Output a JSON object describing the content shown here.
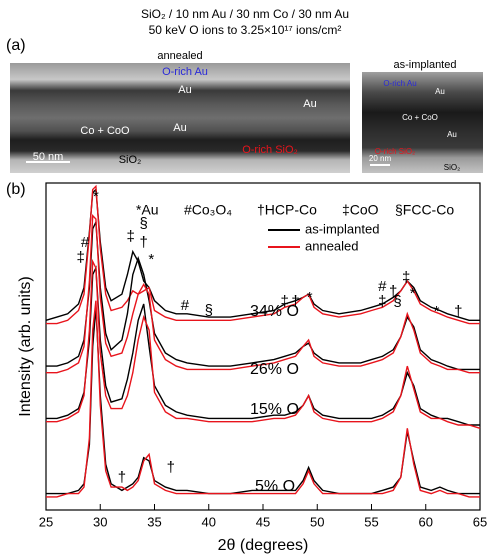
{
  "figure": {
    "title_line1": "SiO₂ / 10 nm Au / 30 nm Co / 30 nm Au",
    "title_line2": "50 keV O ions to 3.25×10¹⁷ ions/cm²",
    "panel_a": {
      "label": "(a)",
      "left": {
        "caption": "annealed",
        "labels": [
          "O-rich Au",
          "Au",
          "Au",
          "Co + CoO",
          "Au",
          "O-rich SiO₂",
          "50 nm",
          "SiO₂"
        ]
      },
      "right": {
        "caption": "as-implanted",
        "labels": [
          "O-rich Au",
          "Au",
          "Co + CoO",
          "Au",
          "O-rich SiO₂",
          "20 nm",
          "SiO₂"
        ]
      }
    }
  },
  "chart_data": {
    "type": "line",
    "panel_label": "(b)",
    "x_label": "2θ (degrees)",
    "y_label": "Intensity (arb. units)",
    "xlim": [
      25,
      65
    ],
    "xticks": [
      25,
      30,
      35,
      40,
      45,
      50,
      55,
      60,
      65
    ],
    "ylim": [
      0,
      100
    ],
    "key": [
      "*Au",
      "#Co₃O₄",
      "†HCP-Co",
      "‡CoO",
      "§FCC-Co"
    ],
    "legend": [
      {
        "name": "as-implanted",
        "color": "#000000"
      },
      {
        "name": "annealed",
        "color": "#e8141c"
      }
    ],
    "x": [
      25,
      26,
      27,
      28,
      28.5,
      29,
      29.3,
      29.6,
      30,
      30.5,
      31,
      32,
      32.5,
      33,
      33.5,
      34,
      34.5,
      35,
      36,
      37,
      38,
      40,
      42,
      44,
      46,
      47,
      48,
      48.7,
      49.2,
      49.7,
      50.5,
      52,
      54,
      55,
      56,
      57,
      57.7,
      58.3,
      58.9,
      59.5,
      60.5,
      61.3,
      62,
      63,
      64,
      65
    ],
    "curves": [
      {
        "label": "34% O",
        "values": [
          [
            58,
            59,
            60,
            63,
            68,
            85,
            97,
            98,
            82,
            68,
            64,
            66,
            72,
            79,
            76,
            70,
            68,
            64,
            61,
            60,
            60,
            59,
            59,
            60,
            61,
            63,
            64,
            65,
            66,
            63,
            61,
            60,
            61,
            62,
            63,
            65,
            67,
            70,
            68,
            64,
            62,
            61,
            60,
            59,
            58,
            58
          ],
          [
            57,
            57,
            58,
            61,
            66,
            84,
            98,
            99,
            80,
            66,
            61,
            62,
            64,
            67,
            66,
            67,
            68,
            61,
            59,
            58,
            58,
            58,
            58,
            59,
            60,
            62,
            63,
            65,
            66,
            62,
            60,
            59,
            60,
            61,
            62,
            64,
            67,
            70,
            67,
            63,
            61,
            60,
            59,
            58,
            57,
            57
          ]
        ]
      },
      {
        "label": "26% O",
        "values": [
          [
            44,
            44,
            45,
            47,
            52,
            68,
            86,
            88,
            68,
            54,
            49,
            52,
            60,
            72,
            77,
            72,
            64,
            54,
            48,
            46,
            45,
            44,
            44,
            45,
            46,
            47,
            48,
            50,
            51,
            48,
            46,
            45,
            45,
            46,
            47,
            49,
            53,
            59,
            56,
            49,
            46,
            45,
            44,
            43,
            43,
            43
          ],
          [
            42,
            42,
            43,
            45,
            50,
            70,
            90,
            89,
            65,
            51,
            47,
            48,
            53,
            60,
            66,
            69,
            66,
            52,
            46,
            44,
            43,
            43,
            43,
            44,
            45,
            46,
            47,
            50,
            52,
            47,
            45,
            44,
            44,
            45,
            46,
            48,
            53,
            60,
            55,
            48,
            45,
            44,
            43,
            43,
            42,
            42
          ]
        ]
      },
      {
        "label": "15% O",
        "values": [
          [
            28,
            28,
            29,
            31,
            36,
            52,
            72,
            74,
            52,
            38,
            33,
            34,
            40,
            48,
            58,
            63,
            50,
            38,
            32,
            30,
            29,
            28,
            28,
            28,
            29,
            29,
            30,
            32,
            35,
            31,
            29,
            28,
            28,
            28,
            29,
            31,
            35,
            42,
            38,
            31,
            29,
            28,
            28,
            27,
            26,
            26
          ],
          [
            27,
            27,
            28,
            30,
            35,
            55,
            76,
            74,
            48,
            35,
            31,
            31,
            35,
            42,
            52,
            59,
            55,
            36,
            30,
            28,
            28,
            27,
            27,
            27,
            28,
            28,
            29,
            32,
            35,
            30,
            28,
            27,
            27,
            27,
            28,
            30,
            35,
            44,
            37,
            30,
            28,
            28,
            27,
            26,
            26,
            25
          ]
        ]
      },
      {
        "label": "5% O",
        "values": [
          [
            5,
            5,
            5,
            6,
            8,
            20,
            50,
            62,
            35,
            14,
            8,
            6,
            7,
            8,
            10,
            16,
            15,
            9,
            7,
            6,
            6,
            5,
            5,
            6,
            6,
            6,
            6,
            9,
            13,
            9,
            6,
            5,
            5,
            5,
            6,
            7,
            10,
            24,
            15,
            7,
            6,
            7,
            6,
            5,
            5,
            5
          ],
          [
            4,
            4,
            5,
            5,
            7,
            22,
            55,
            64,
            32,
            12,
            7,
            7,
            6,
            7,
            9,
            15,
            17,
            8,
            6,
            5,
            5,
            5,
            5,
            5,
            5,
            5,
            5,
            8,
            12,
            8,
            5,
            5,
            5,
            5,
            5,
            6,
            10,
            25,
            14,
            6,
            5,
            6,
            5,
            5,
            4,
            4
          ]
        ]
      }
    ],
    "annotations": [
      "*",
      "#",
      "‡",
      "‡",
      "§",
      "†",
      "*",
      "#",
      "§",
      "‡",
      "†",
      "*",
      "#",
      "‡",
      "†",
      "§",
      "‡",
      "*",
      "*",
      "†",
      "†",
      "†"
    ]
  }
}
